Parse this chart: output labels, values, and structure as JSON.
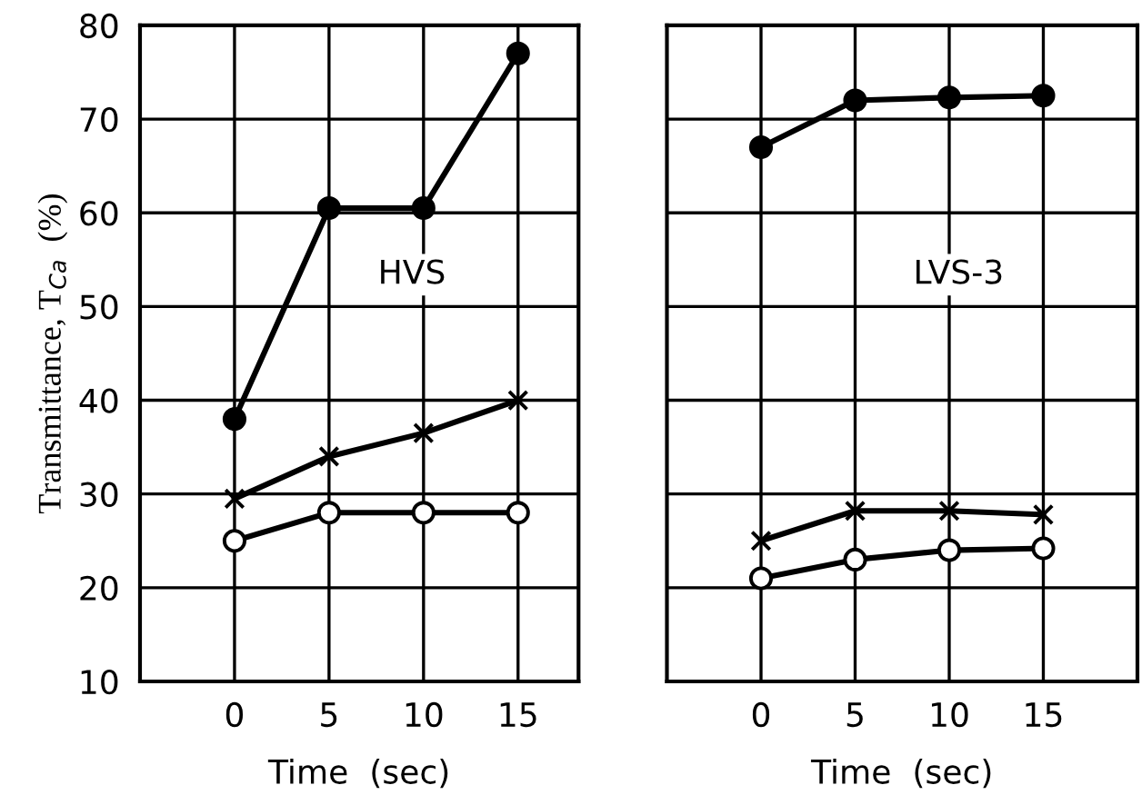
{
  "chart_data": [
    {
      "type": "line",
      "xlabel": "Time  (sec)",
      "ylabel": "Transmittance, T$_{Ca}$  (%)",
      "x": [
        0,
        5,
        10,
        15
      ],
      "xlim": [
        -5,
        18.2
      ],
      "xticks": [
        0,
        5,
        10,
        15
      ],
      "ylim": [
        10,
        80
      ],
      "yticks": [
        10,
        20,
        30,
        40,
        50,
        60,
        70,
        80
      ],
      "grid": true,
      "annotations": [
        "HVS"
      ],
      "series": [
        {
          "color": "#000000",
          "marker": "circle",
          "values": [
            38,
            60.5,
            60.5,
            77
          ]
        },
        {
          "color": "#000000",
          "marker": "cross",
          "values": [
            29.5,
            34,
            36.5,
            40
          ]
        },
        {
          "color": "#000000",
          "marker": "circle",
          "values": [
            25,
            28,
            28,
            28
          ]
        }
      ]
    },
    {
      "type": "line",
      "xlabel": "Time  (sec)",
      "x": [
        0,
        5,
        10,
        15
      ],
      "xlim": [
        -5,
        20
      ],
      "xticks": [
        0,
        5,
        10,
        15
      ],
      "ylim": [
        10,
        80
      ],
      "tick_labels": "x",
      "grid": true,
      "annotations": [
        "LVS-3"
      ],
      "series": [
        {
          "color": "#000000",
          "marker": "circle",
          "values": [
            67,
            72,
            72.3,
            72.5
          ]
        },
        {
          "color": "#000000",
          "marker": "cross",
          "values": [
            25,
            28.2,
            28.2,
            27.8
          ]
        },
        {
          "color": "#000000",
          "marker": "circle",
          "values": [
            21,
            23,
            24,
            24.2
          ]
        }
      ]
    }
  ]
}
